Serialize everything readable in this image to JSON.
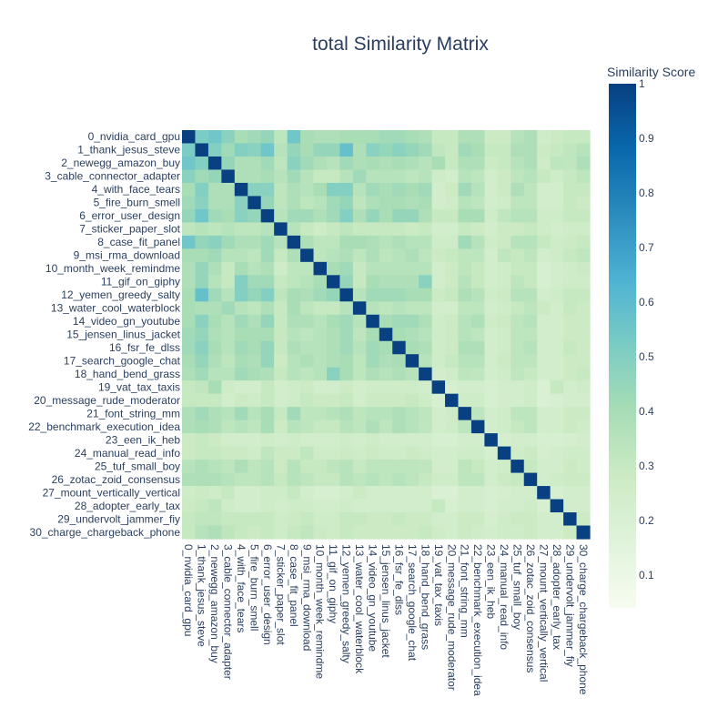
{
  "chart_data": {
    "type": "heatmap",
    "title": "total Similarity Matrix",
    "labels": [
      "0_nvidia_card_gpu",
      "1_thank_jesus_steve",
      "2_newegg_amazon_buy",
      "3_cable_connector_adapter",
      "4_with_face_tears",
      "5_fire_burn_smell",
      "6_error_user_design",
      "7_sticker_paper_slot",
      "8_case_fit_panel",
      "9_msi_rma_download",
      "10_month_week_remindme",
      "11_gif_on_giphy",
      "12_yemen_greedy_salty",
      "13_water_cool_waterblock",
      "14_video_gn_youtube",
      "15_jensen_linus_jacket",
      "16_fsr_fe_dlss",
      "17_search_google_chat",
      "18_hand_bend_grass",
      "19_vat_tax_taxis",
      "20_message_rude_moderator",
      "21_font_string_mm",
      "22_benchmark_execution_idea",
      "23_een_ik_heb",
      "24_manual_read_info",
      "25_tuf_small_boy",
      "26_zotac_zoid_consensus",
      "27_mount_vertically_vertical",
      "28_adopter_early_tax",
      "29_undervolt_jammer_fiy",
      "30_charge_chargeback_phone"
    ],
    "rows": [
      [
        1.0,
        0.52,
        0.55,
        0.48,
        0.4,
        0.42,
        0.45,
        0.33,
        0.55,
        0.4,
        0.38,
        0.38,
        0.4,
        0.4,
        0.4,
        0.42,
        0.42,
        0.4,
        0.38,
        0.3,
        0.3,
        0.38,
        0.38,
        0.28,
        0.28,
        0.35,
        0.38,
        0.26,
        0.28,
        0.3,
        0.3
      ],
      [
        0.52,
        1.0,
        0.5,
        0.42,
        0.5,
        0.48,
        0.55,
        0.35,
        0.45,
        0.4,
        0.45,
        0.45,
        0.58,
        0.38,
        0.48,
        0.45,
        0.48,
        0.45,
        0.42,
        0.32,
        0.3,
        0.42,
        0.4,
        0.3,
        0.3,
        0.38,
        0.38,
        0.28,
        0.3,
        0.32,
        0.35
      ],
      [
        0.55,
        0.5,
        1.0,
        0.45,
        0.38,
        0.38,
        0.42,
        0.33,
        0.48,
        0.42,
        0.38,
        0.35,
        0.42,
        0.38,
        0.4,
        0.38,
        0.4,
        0.38,
        0.35,
        0.4,
        0.3,
        0.38,
        0.38,
        0.28,
        0.3,
        0.35,
        0.38,
        0.27,
        0.33,
        0.32,
        0.38
      ],
      [
        0.48,
        0.42,
        0.45,
        1.0,
        0.38,
        0.38,
        0.4,
        0.35,
        0.42,
        0.35,
        0.3,
        0.3,
        0.35,
        0.42,
        0.35,
        0.35,
        0.35,
        0.33,
        0.35,
        0.27,
        0.25,
        0.35,
        0.33,
        0.25,
        0.28,
        0.33,
        0.35,
        0.3,
        0.27,
        0.3,
        0.33
      ],
      [
        0.4,
        0.5,
        0.38,
        0.38,
        1.0,
        0.48,
        0.48,
        0.33,
        0.38,
        0.35,
        0.4,
        0.5,
        0.5,
        0.35,
        0.42,
        0.4,
        0.42,
        0.4,
        0.42,
        0.25,
        0.28,
        0.42,
        0.35,
        0.25,
        0.28,
        0.38,
        0.33,
        0.25,
        0.25,
        0.3,
        0.3
      ],
      [
        0.42,
        0.48,
        0.38,
        0.38,
        0.48,
        1.0,
        0.45,
        0.33,
        0.38,
        0.33,
        0.35,
        0.42,
        0.45,
        0.33,
        0.38,
        0.4,
        0.4,
        0.38,
        0.4,
        0.25,
        0.27,
        0.35,
        0.33,
        0.25,
        0.27,
        0.33,
        0.33,
        0.25,
        0.25,
        0.3,
        0.28
      ],
      [
        0.45,
        0.55,
        0.42,
        0.4,
        0.48,
        0.45,
        1.0,
        0.35,
        0.42,
        0.42,
        0.38,
        0.42,
        0.5,
        0.38,
        0.45,
        0.4,
        0.45,
        0.45,
        0.38,
        0.3,
        0.3,
        0.4,
        0.4,
        0.27,
        0.32,
        0.35,
        0.35,
        0.27,
        0.27,
        0.3,
        0.3
      ],
      [
        0.33,
        0.35,
        0.33,
        0.35,
        0.33,
        0.33,
        0.35,
        1.0,
        0.35,
        0.3,
        0.27,
        0.3,
        0.33,
        0.3,
        0.3,
        0.3,
        0.3,
        0.28,
        0.3,
        0.25,
        0.25,
        0.3,
        0.28,
        0.25,
        0.28,
        0.28,
        0.3,
        0.27,
        0.25,
        0.27,
        0.27
      ],
      [
        0.55,
        0.45,
        0.48,
        0.42,
        0.38,
        0.38,
        0.42,
        0.35,
        1.0,
        0.38,
        0.33,
        0.33,
        0.4,
        0.4,
        0.38,
        0.35,
        0.38,
        0.35,
        0.35,
        0.27,
        0.27,
        0.42,
        0.35,
        0.27,
        0.28,
        0.35,
        0.35,
        0.3,
        0.27,
        0.28,
        0.3
      ],
      [
        0.4,
        0.4,
        0.42,
        0.35,
        0.35,
        0.33,
        0.42,
        0.3,
        0.38,
        1.0,
        0.33,
        0.35,
        0.38,
        0.33,
        0.38,
        0.33,
        0.35,
        0.38,
        0.33,
        0.28,
        0.3,
        0.33,
        0.33,
        0.25,
        0.32,
        0.3,
        0.33,
        0.25,
        0.27,
        0.3,
        0.32
      ],
      [
        0.38,
        0.45,
        0.38,
        0.3,
        0.4,
        0.35,
        0.38,
        0.27,
        0.33,
        0.33,
        1.0,
        0.4,
        0.42,
        0.3,
        0.35,
        0.35,
        0.35,
        0.35,
        0.35,
        0.25,
        0.28,
        0.33,
        0.3,
        0.25,
        0.27,
        0.3,
        0.3,
        0.22,
        0.25,
        0.27,
        0.28
      ],
      [
        0.38,
        0.45,
        0.35,
        0.3,
        0.5,
        0.42,
        0.42,
        0.3,
        0.33,
        0.35,
        0.4,
        1.0,
        0.45,
        0.3,
        0.4,
        0.38,
        0.38,
        0.38,
        0.48,
        0.25,
        0.28,
        0.35,
        0.3,
        0.25,
        0.27,
        0.33,
        0.3,
        0.22,
        0.25,
        0.27,
        0.27
      ],
      [
        0.4,
        0.58,
        0.42,
        0.35,
        0.5,
        0.45,
        0.5,
        0.33,
        0.4,
        0.38,
        0.42,
        0.45,
        1.0,
        0.35,
        0.42,
        0.42,
        0.42,
        0.4,
        0.4,
        0.28,
        0.3,
        0.38,
        0.35,
        0.27,
        0.28,
        0.35,
        0.35,
        0.25,
        0.27,
        0.3,
        0.3
      ],
      [
        0.4,
        0.38,
        0.38,
        0.42,
        0.35,
        0.33,
        0.38,
        0.3,
        0.4,
        0.33,
        0.3,
        0.3,
        0.35,
        1.0,
        0.35,
        0.33,
        0.35,
        0.33,
        0.33,
        0.25,
        0.25,
        0.33,
        0.33,
        0.25,
        0.27,
        0.3,
        0.33,
        0.28,
        0.25,
        0.3,
        0.28
      ],
      [
        0.4,
        0.48,
        0.4,
        0.35,
        0.42,
        0.38,
        0.45,
        0.3,
        0.38,
        0.38,
        0.35,
        0.4,
        0.42,
        0.35,
        1.0,
        0.4,
        0.42,
        0.42,
        0.38,
        0.27,
        0.28,
        0.35,
        0.38,
        0.27,
        0.28,
        0.33,
        0.35,
        0.25,
        0.25,
        0.28,
        0.28
      ],
      [
        0.42,
        0.45,
        0.38,
        0.35,
        0.4,
        0.4,
        0.4,
        0.3,
        0.35,
        0.33,
        0.35,
        0.38,
        0.42,
        0.33,
        0.4,
        1.0,
        0.4,
        0.38,
        0.35,
        0.27,
        0.28,
        0.35,
        0.33,
        0.25,
        0.27,
        0.33,
        0.33,
        0.25,
        0.25,
        0.28,
        0.28
      ],
      [
        0.42,
        0.48,
        0.4,
        0.35,
        0.42,
        0.4,
        0.45,
        0.3,
        0.38,
        0.35,
        0.35,
        0.38,
        0.42,
        0.35,
        0.42,
        0.4,
        1.0,
        0.4,
        0.38,
        0.27,
        0.28,
        0.38,
        0.38,
        0.25,
        0.27,
        0.33,
        0.35,
        0.25,
        0.25,
        0.3,
        0.28
      ],
      [
        0.4,
        0.45,
        0.38,
        0.33,
        0.4,
        0.38,
        0.45,
        0.28,
        0.35,
        0.38,
        0.35,
        0.38,
        0.4,
        0.33,
        0.42,
        0.38,
        0.4,
        1.0,
        0.35,
        0.27,
        0.3,
        0.35,
        0.35,
        0.25,
        0.28,
        0.33,
        0.33,
        0.25,
        0.25,
        0.28,
        0.28
      ],
      [
        0.38,
        0.42,
        0.35,
        0.35,
        0.42,
        0.4,
        0.38,
        0.3,
        0.35,
        0.33,
        0.35,
        0.48,
        0.4,
        0.33,
        0.38,
        0.35,
        0.38,
        0.35,
        1.0,
        0.25,
        0.27,
        0.33,
        0.32,
        0.25,
        0.27,
        0.32,
        0.3,
        0.25,
        0.25,
        0.28,
        0.3
      ],
      [
        0.3,
        0.32,
        0.4,
        0.27,
        0.25,
        0.25,
        0.3,
        0.25,
        0.27,
        0.28,
        0.25,
        0.25,
        0.28,
        0.25,
        0.27,
        0.27,
        0.27,
        0.27,
        0.25,
        1.0,
        0.22,
        0.25,
        0.25,
        0.22,
        0.25,
        0.25,
        0.27,
        0.2,
        0.3,
        0.25,
        0.27
      ],
      [
        0.3,
        0.3,
        0.3,
        0.25,
        0.28,
        0.27,
        0.3,
        0.25,
        0.27,
        0.3,
        0.28,
        0.28,
        0.3,
        0.25,
        0.28,
        0.28,
        0.28,
        0.3,
        0.27,
        0.22,
        1.0,
        0.27,
        0.27,
        0.22,
        0.25,
        0.25,
        0.27,
        0.2,
        0.22,
        0.25,
        0.25
      ],
      [
        0.38,
        0.42,
        0.38,
        0.35,
        0.42,
        0.35,
        0.4,
        0.3,
        0.42,
        0.33,
        0.33,
        0.35,
        0.38,
        0.33,
        0.35,
        0.35,
        0.38,
        0.35,
        0.33,
        0.25,
        0.27,
        1.0,
        0.33,
        0.25,
        0.27,
        0.33,
        0.33,
        0.25,
        0.25,
        0.28,
        0.28
      ],
      [
        0.38,
        0.4,
        0.38,
        0.33,
        0.35,
        0.33,
        0.4,
        0.28,
        0.35,
        0.33,
        0.3,
        0.3,
        0.35,
        0.33,
        0.38,
        0.33,
        0.38,
        0.35,
        0.32,
        0.25,
        0.27,
        0.33,
        1.0,
        0.25,
        0.27,
        0.3,
        0.33,
        0.25,
        0.25,
        0.28,
        0.27
      ],
      [
        0.28,
        0.3,
        0.28,
        0.25,
        0.25,
        0.25,
        0.27,
        0.25,
        0.27,
        0.25,
        0.25,
        0.25,
        0.27,
        0.25,
        0.27,
        0.25,
        0.25,
        0.25,
        0.25,
        0.22,
        0.22,
        0.25,
        0.25,
        1.0,
        0.23,
        0.25,
        0.25,
        0.22,
        0.22,
        0.23,
        0.25
      ],
      [
        0.28,
        0.3,
        0.3,
        0.28,
        0.28,
        0.27,
        0.32,
        0.28,
        0.28,
        0.32,
        0.27,
        0.27,
        0.28,
        0.27,
        0.28,
        0.27,
        0.27,
        0.28,
        0.27,
        0.25,
        0.25,
        0.27,
        0.27,
        0.23,
        1.0,
        0.27,
        0.28,
        0.23,
        0.25,
        0.27,
        0.27
      ],
      [
        0.35,
        0.38,
        0.35,
        0.33,
        0.38,
        0.33,
        0.35,
        0.28,
        0.35,
        0.3,
        0.3,
        0.33,
        0.35,
        0.3,
        0.33,
        0.33,
        0.33,
        0.33,
        0.32,
        0.25,
        0.25,
        0.33,
        0.3,
        0.25,
        0.27,
        1.0,
        0.3,
        0.25,
        0.25,
        0.28,
        0.27
      ],
      [
        0.38,
        0.38,
        0.38,
        0.35,
        0.33,
        0.33,
        0.35,
        0.3,
        0.35,
        0.33,
        0.3,
        0.3,
        0.35,
        0.33,
        0.35,
        0.33,
        0.35,
        0.33,
        0.3,
        0.27,
        0.27,
        0.33,
        0.33,
        0.25,
        0.28,
        0.3,
        1.0,
        0.25,
        0.27,
        0.28,
        0.28
      ],
      [
        0.26,
        0.28,
        0.27,
        0.3,
        0.25,
        0.25,
        0.27,
        0.27,
        0.3,
        0.25,
        0.22,
        0.22,
        0.25,
        0.28,
        0.25,
        0.25,
        0.25,
        0.25,
        0.25,
        0.2,
        0.2,
        0.25,
        0.25,
        0.22,
        0.23,
        0.25,
        0.25,
        1.0,
        0.22,
        0.25,
        0.25
      ],
      [
        0.28,
        0.3,
        0.33,
        0.27,
        0.25,
        0.25,
        0.27,
        0.25,
        0.27,
        0.27,
        0.25,
        0.25,
        0.27,
        0.25,
        0.25,
        0.25,
        0.25,
        0.25,
        0.25,
        0.3,
        0.22,
        0.25,
        0.25,
        0.22,
        0.25,
        0.25,
        0.27,
        0.22,
        1.0,
        0.25,
        0.25
      ],
      [
        0.3,
        0.32,
        0.32,
        0.3,
        0.3,
        0.3,
        0.3,
        0.27,
        0.28,
        0.3,
        0.27,
        0.27,
        0.3,
        0.3,
        0.28,
        0.28,
        0.3,
        0.28,
        0.28,
        0.25,
        0.25,
        0.28,
        0.28,
        0.23,
        0.27,
        0.28,
        0.28,
        0.25,
        0.25,
        1.0,
        0.28
      ],
      [
        0.3,
        0.35,
        0.38,
        0.33,
        0.3,
        0.28,
        0.3,
        0.27,
        0.3,
        0.32,
        0.28,
        0.27,
        0.3,
        0.28,
        0.28,
        0.28,
        0.28,
        0.28,
        0.3,
        0.27,
        0.25,
        0.28,
        0.27,
        0.25,
        0.27,
        0.27,
        0.28,
        0.25,
        0.25,
        0.28,
        1.0
      ]
    ],
    "zlim": [
      0.04,
      1
    ],
    "colorbar": {
      "title": "Similarity Score",
      "ticks": [
        "0.1",
        "0.2",
        "0.3",
        "0.4",
        "0.5",
        "0.6",
        "0.7",
        "0.8",
        "0.9",
        "1"
      ]
    },
    "colorscale": [
      "#f7fcf0",
      "#e0f3db",
      "#ccebc5",
      "#a8ddb5",
      "#7bccc4",
      "#4eb3d3",
      "#2b8cbe",
      "#0868ac",
      "#084081"
    ]
  }
}
